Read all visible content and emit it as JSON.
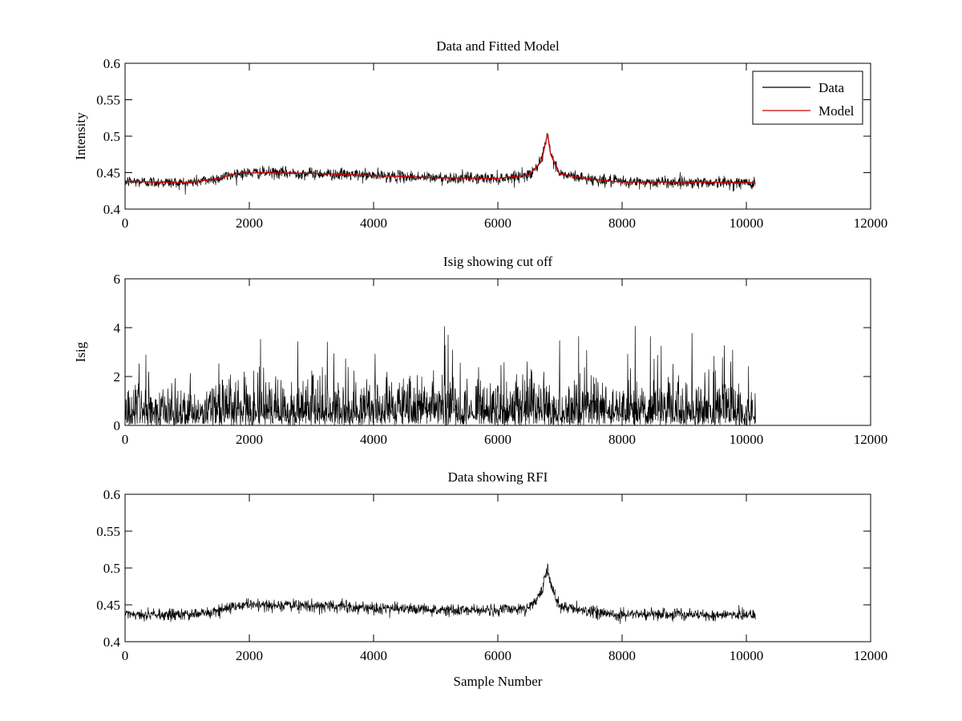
{
  "chart_data": [
    {
      "type": "line",
      "title": "Data and Fitted Model",
      "xlabel": "",
      "ylabel": "Intensity",
      "xlim": [
        0,
        12000
      ],
      "ylim": [
        0.4,
        0.6
      ],
      "xticks": [
        "0",
        "2000",
        "4000",
        "6000",
        "8000",
        "10000",
        "12000"
      ],
      "yticks": [
        "0.4",
        "0.45",
        "0.5",
        "0.55",
        "0.6"
      ],
      "legend_position": "top-right",
      "series": [
        {
          "name": "Data",
          "color": "#000000",
          "x_range": [
            0,
            10150
          ],
          "noise": 0.004,
          "profile": [
            [
              0,
              0.438
            ],
            [
              500,
              0.437
            ],
            [
              1000,
              0.436
            ],
            [
              1500,
              0.442
            ],
            [
              1800,
              0.449
            ],
            [
              2200,
              0.45
            ],
            [
              3000,
              0.449
            ],
            [
              4000,
              0.446
            ],
            [
              5000,
              0.443
            ],
            [
              6000,
              0.442
            ],
            [
              6500,
              0.447
            ],
            [
              6700,
              0.465
            ],
            [
              6800,
              0.503
            ],
            [
              6850,
              0.475
            ],
            [
              7000,
              0.448
            ],
            [
              7500,
              0.441
            ],
            [
              8000,
              0.437
            ],
            [
              9000,
              0.437
            ],
            [
              10150,
              0.436
            ]
          ]
        },
        {
          "name": "Model",
          "color": "#cc0000",
          "x_range": [
            0,
            10150
          ],
          "profile": [
            [
              0,
              0.438
            ],
            [
              500,
              0.437
            ],
            [
              1000,
              0.436
            ],
            [
              1500,
              0.442
            ],
            [
              1800,
              0.449
            ],
            [
              2200,
              0.45
            ],
            [
              3000,
              0.449
            ],
            [
              4000,
              0.446
            ],
            [
              5000,
              0.443
            ],
            [
              6000,
              0.442
            ],
            [
              6500,
              0.447
            ],
            [
              6700,
              0.465
            ],
            [
              6800,
              0.503
            ],
            [
              6850,
              0.475
            ],
            [
              7000,
              0.448
            ],
            [
              7500,
              0.441
            ],
            [
              8000,
              0.437
            ],
            [
              9000,
              0.437
            ],
            [
              10150,
              0.436
            ]
          ]
        }
      ]
    },
    {
      "type": "line",
      "title": "Isig showing cut off",
      "xlabel": "",
      "ylabel": "Isig",
      "xlim": [
        0,
        12000
      ],
      "ylim": [
        0,
        6
      ],
      "xticks": [
        "0",
        "2000",
        "4000",
        "6000",
        "8000",
        "10000",
        "12000"
      ],
      "yticks": [
        "0",
        "2",
        "4",
        "6"
      ],
      "series": [
        {
          "color": "#000000",
          "x_range": [
            0,
            10150
          ],
          "distribution": "abs-normal",
          "typical_max": 2.5,
          "peak_max": 4.2
        }
      ]
    },
    {
      "type": "line",
      "title": "Data showing RFI",
      "xlabel": "Sample Number",
      "ylabel": "",
      "xlim": [
        0,
        12000
      ],
      "ylim": [
        0.4,
        0.6
      ],
      "xticks": [
        "0",
        "2000",
        "4000",
        "6000",
        "8000",
        "10000",
        "12000"
      ],
      "yticks": [
        "0.4",
        "0.45",
        "0.5",
        "0.55",
        "0.6"
      ],
      "series": [
        {
          "color": "#000000",
          "x_range": [
            0,
            10150
          ],
          "noise": 0.004,
          "profile": [
            [
              0,
              0.438
            ],
            [
              500,
              0.437
            ],
            [
              1000,
              0.436
            ],
            [
              1500,
              0.442
            ],
            [
              1800,
              0.449
            ],
            [
              2200,
              0.45
            ],
            [
              3000,
              0.449
            ],
            [
              4000,
              0.446
            ],
            [
              5000,
              0.443
            ],
            [
              6000,
              0.442
            ],
            [
              6500,
              0.447
            ],
            [
              6700,
              0.465
            ],
            [
              6800,
              0.503
            ],
            [
              6850,
              0.475
            ],
            [
              7000,
              0.448
            ],
            [
              7500,
              0.441
            ],
            [
              8000,
              0.437
            ],
            [
              9000,
              0.437
            ],
            [
              10150,
              0.436
            ]
          ]
        }
      ]
    }
  ]
}
